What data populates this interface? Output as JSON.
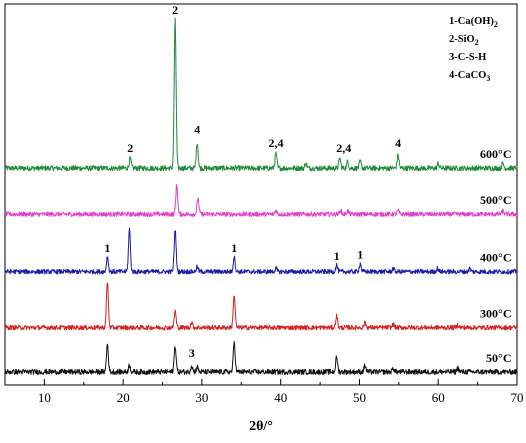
{
  "chart_data": {
    "type": "line",
    "xlabel": "2θ/°",
    "xlim": [
      5,
      70
    ],
    "x_ticks": [
      "10",
      "20",
      "30",
      "40",
      "50",
      "60",
      "70"
    ],
    "grid": false,
    "legend_position": "top-right",
    "legend": [
      {
        "prefix": "1-Ca(OH)",
        "sub": "2"
      },
      {
        "prefix": "2-SiO",
        "sub": "2"
      },
      {
        "prefix": "3-C-S-H",
        "sub": ""
      },
      {
        "prefix": "4-CaCO",
        "sub": "3"
      }
    ],
    "series": [
      {
        "name": "600°C",
        "color": "#1f8a3a",
        "baseline": 0.66,
        "noise": 0.008,
        "peaks": [
          [
            20.9,
            0.03
          ],
          [
            26.6,
            0.45
          ],
          [
            29.4,
            0.08
          ],
          [
            39.4,
            0.045
          ],
          [
            43.2,
            0.015
          ],
          [
            47.5,
            0.03
          ],
          [
            48.5,
            0.02
          ],
          [
            50.1,
            0.02
          ],
          [
            54.9,
            0.04
          ],
          [
            60.0,
            0.015
          ],
          [
            68.2,
            0.015
          ]
        ],
        "peak_labels": [
          {
            "text": "2",
            "x": 20.9,
            "y": 0.71
          },
          {
            "text": "2",
            "x": 26.6,
            "y": 1.13
          },
          {
            "text": "4",
            "x": 29.4,
            "y": 0.765
          },
          {
            "text": "2,4",
            "x": 39.4,
            "y": 0.725
          },
          {
            "text": "2,4",
            "x": 48.0,
            "y": 0.71
          },
          {
            "text": "4",
            "x": 54.9,
            "y": 0.725
          }
        ]
      },
      {
        "name": "500°C",
        "color": "#e040c8",
        "baseline": 0.52,
        "noise": 0.007,
        "peaks": [
          [
            26.8,
            0.09
          ],
          [
            29.5,
            0.05
          ],
          [
            39.4,
            0.012
          ],
          [
            47.6,
            0.012
          ],
          [
            48.5,
            0.01
          ],
          [
            54.9,
            0.01
          ],
          [
            68.2,
            0.01
          ]
        ],
        "peak_labels": []
      },
      {
        "name": "400°C",
        "color": "#1a1aa8",
        "baseline": 0.345,
        "noise": 0.007,
        "peaks": [
          [
            18.0,
            0.045
          ],
          [
            20.8,
            0.13
          ],
          [
            26.6,
            0.13
          ],
          [
            29.4,
            0.015
          ],
          [
            34.1,
            0.045
          ],
          [
            39.4,
            0.01
          ],
          [
            47.1,
            0.02
          ],
          [
            50.1,
            0.025
          ],
          [
            54.3,
            0.01
          ],
          [
            59.9,
            0.01
          ],
          [
            64.0,
            0.01
          ]
        ],
        "peak_labels": [
          {
            "text": "1",
            "x": 18.0,
            "y": 0.405
          },
          {
            "text": "1",
            "x": 34.1,
            "y": 0.405
          },
          {
            "text": "1",
            "x": 47.1,
            "y": 0.38
          },
          {
            "text": "1",
            "x": 50.1,
            "y": 0.385
          }
        ]
      },
      {
        "name": "300°C",
        "color": "#d62222",
        "baseline": 0.175,
        "noise": 0.007,
        "peaks": [
          [
            18.0,
            0.14
          ],
          [
            26.6,
            0.05
          ],
          [
            28.7,
            0.015
          ],
          [
            34.1,
            0.1
          ],
          [
            47.1,
            0.035
          ],
          [
            50.7,
            0.015
          ],
          [
            54.3,
            0.01
          ],
          [
            62.5,
            0.008
          ]
        ],
        "peak_labels": []
      },
      {
        "name": "50°C",
        "color": "#111111",
        "baseline": 0.04,
        "noise": 0.008,
        "peaks": [
          [
            18.0,
            0.085
          ],
          [
            20.8,
            0.02
          ],
          [
            26.6,
            0.08
          ],
          [
            28.7,
            0.02
          ],
          [
            29.4,
            0.015
          ],
          [
            34.1,
            0.09
          ],
          [
            47.1,
            0.045
          ],
          [
            50.7,
            0.02
          ],
          [
            54.3,
            0.012
          ],
          [
            62.5,
            0.012
          ]
        ],
        "peak_labels": [
          {
            "text": "3",
            "x": 28.7,
            "y": 0.085
          }
        ]
      }
    ]
  }
}
